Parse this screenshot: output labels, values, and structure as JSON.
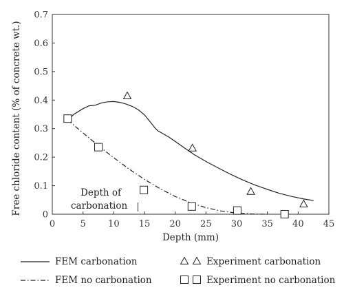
{
  "chart_data": {
    "type": "line",
    "xlabel": "Depth (mm)",
    "ylabel": "Free chloride content (% of concrete wt.)",
    "xlim": [
      0,
      45
    ],
    "ylim": [
      0,
      0.7
    ],
    "x_ticks": [
      "0",
      "5",
      "10",
      "15",
      "20",
      "25",
      "30",
      "35",
      "40",
      "45"
    ],
    "y_ticks": [
      "0",
      "0.1",
      "0.2",
      "0.3",
      "0.4",
      "0.5",
      "0.6",
      "0.7"
    ],
    "grid": false,
    "legend_placement": "bottom",
    "annotation": {
      "lines": [
        "Depth of",
        "carbonation"
      ],
      "at_x": 14.5
    },
    "series": [
      {
        "name": "FEM carbonation",
        "style": "solid-line",
        "x": [
          2.5,
          3.5,
          5,
          6,
          7,
          8,
          9,
          10,
          11,
          12,
          13,
          14,
          15,
          16,
          16.8,
          17.2,
          19,
          21,
          23,
          25,
          27,
          29,
          31,
          33,
          35,
          37,
          39,
          41,
          42.5
        ],
        "y": [
          0.33,
          0.35,
          0.37,
          0.38,
          0.382,
          0.39,
          0.394,
          0.395,
          0.392,
          0.386,
          0.378,
          0.366,
          0.348,
          0.322,
          0.3,
          0.292,
          0.27,
          0.24,
          0.21,
          0.185,
          0.162,
          0.14,
          0.12,
          0.102,
          0.087,
          0.073,
          0.062,
          0.053,
          0.048
        ]
      },
      {
        "name": "FEM no carbonation",
        "style": "dash-dot-line",
        "x": [
          2.5,
          5,
          7.5,
          10,
          12.5,
          15,
          17.5,
          20,
          22.5,
          25,
          27.5,
          30,
          32.5,
          35
        ],
        "y": [
          0.33,
          0.285,
          0.24,
          0.198,
          0.158,
          0.122,
          0.09,
          0.062,
          0.04,
          0.023,
          0.011,
          0.004,
          0.001,
          0
        ]
      },
      {
        "name": "Experiment carbonation",
        "style": "triangle-marker",
        "x": [
          2.5,
          12.2,
          22.8,
          32.3,
          40.9
        ],
        "y": [
          0.335,
          0.415,
          0.232,
          0.08,
          0.036
        ]
      },
      {
        "name": "Experiment no carbonation",
        "style": "square-marker",
        "x": [
          2.5,
          7.5,
          14.9,
          22.7,
          30.1,
          37.8
        ],
        "y": [
          0.335,
          0.235,
          0.085,
          0.027,
          0.013,
          0
        ]
      }
    ]
  }
}
